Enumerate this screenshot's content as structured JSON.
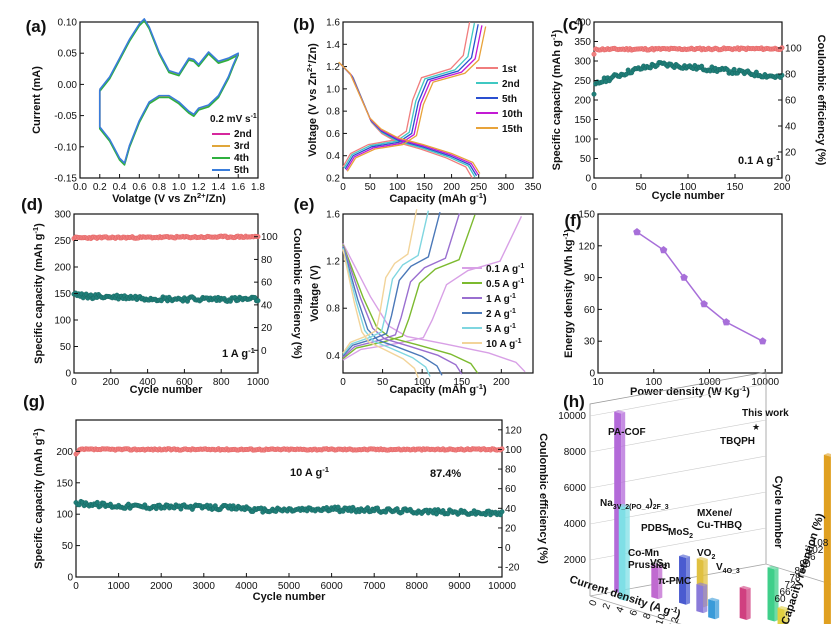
{
  "chart_data": [
    {
      "panel": "(a)",
      "type": "line",
      "xlabel": "Volatge (V vs Zn2+/Zn)",
      "ylabel": "Current (mA)",
      "xlim": [
        0.0,
        1.8
      ],
      "ylim": [
        -0.15,
        0.1
      ],
      "xticks": [
        0.0,
        0.2,
        0.4,
        0.6,
        0.8,
        1.0,
        1.2,
        1.4,
        1.6,
        1.8
      ],
      "yticks": [
        -0.15,
        -0.1,
        -0.05,
        0.0,
        0.05,
        0.1
      ],
      "legend_title": "0.2 mV s-1",
      "series": [
        {
          "name": "2nd",
          "color": "#d6279d",
          "offset": 0.0
        },
        {
          "name": "3rd",
          "color": "#e0a63a",
          "offset": 0.001
        },
        {
          "name": "4th",
          "color": "#2fb03f",
          "offset": -0.001
        },
        {
          "name": "5th",
          "color": "#3a7ddb",
          "offset": 0.002
        }
      ],
      "upper": [
        [
          0.2,
          -0.01
        ],
        [
          0.3,
          0.01
        ],
        [
          0.4,
          0.04
        ],
        [
          0.5,
          0.07
        ],
        [
          0.6,
          0.095
        ],
        [
          0.65,
          0.103
        ],
        [
          0.7,
          0.09
        ],
        [
          0.8,
          0.05
        ],
        [
          0.9,
          0.02
        ],
        [
          1.0,
          0.015
        ],
        [
          1.1,
          0.04
        ],
        [
          1.15,
          0.038
        ],
        [
          1.2,
          0.03
        ],
        [
          1.3,
          0.05
        ],
        [
          1.4,
          0.035
        ],
        [
          1.5,
          0.04
        ],
        [
          1.6,
          0.048
        ]
      ],
      "lower": [
        [
          1.6,
          0.048
        ],
        [
          1.55,
          0.03
        ],
        [
          1.5,
          0.01
        ],
        [
          1.4,
          -0.02
        ],
        [
          1.3,
          -0.035
        ],
        [
          1.2,
          -0.04
        ],
        [
          1.15,
          -0.05
        ],
        [
          1.1,
          -0.045
        ],
        [
          1.0,
          -0.03
        ],
        [
          0.9,
          -0.02
        ],
        [
          0.8,
          -0.02
        ],
        [
          0.7,
          -0.03
        ],
        [
          0.6,
          -0.06
        ],
        [
          0.5,
          -0.1
        ],
        [
          0.45,
          -0.128
        ],
        [
          0.4,
          -0.12
        ],
        [
          0.3,
          -0.09
        ],
        [
          0.2,
          -0.07
        ],
        [
          0.2,
          -0.01
        ]
      ]
    },
    {
      "panel": "(b)",
      "type": "line",
      "xlabel": "Capacity (mAh g-1)",
      "ylabel": "Voltage (V vs Zn2+/Zn)",
      "xlim": [
        0,
        350
      ],
      "ylim": [
        0.2,
        1.6
      ],
      "xticks": [
        0,
        50,
        100,
        150,
        200,
        250,
        300,
        350
      ],
      "yticks": [
        0.2,
        0.4,
        0.6,
        0.8,
        1.0,
        1.2,
        1.4,
        1.6
      ],
      "series": [
        {
          "name": "1st",
          "color": "#f07d7d",
          "cap": 238
        },
        {
          "name": "2nd",
          "color": "#3fc8c2",
          "cap": 245
        },
        {
          "name": "5th",
          "color": "#2a4fd0",
          "cap": 250
        },
        {
          "name": "10th",
          "color": "#c31ad4",
          "cap": 255
        },
        {
          "name": "15th",
          "color": "#e8a33a",
          "cap": 260
        }
      ]
    },
    {
      "panel": "(c)",
      "type": "scatter",
      "xlabel": "Cycle number",
      "ylabel": "Specific capacity (mAh g-1)",
      "y2label": "Coulombic efficiency (%)",
      "xlim": [
        0,
        200
      ],
      "ylim": [
        0,
        400
      ],
      "y2lim": [
        0,
        120
      ],
      "xticks": [
        0,
        50,
        100,
        150,
        200
      ],
      "yticks": [
        0,
        50,
        100,
        150,
        200,
        250,
        300,
        350,
        400
      ],
      "y2ticks": [
        0,
        20,
        40,
        60,
        80,
        100
      ],
      "annotation": "0.1 A g-1",
      "capacity": [
        [
          0,
          210
        ],
        [
          2,
          240
        ],
        [
          10,
          250
        ],
        [
          40,
          275
        ],
        [
          70,
          292
        ],
        [
          100,
          285
        ],
        [
          130,
          278
        ],
        [
          160,
          270
        ],
        [
          200,
          258
        ]
      ],
      "efficiency": [
        [
          0,
          95
        ],
        [
          2,
          99
        ],
        [
          200,
          99.5
        ]
      ]
    },
    {
      "panel": "(d)",
      "type": "scatter",
      "xlabel": "Cycle number",
      "ylabel": "Specific capacity (mAh g-1)",
      "y2label": "Coulombic efficiency (%)",
      "xlim": [
        0,
        1000
      ],
      "ylim": [
        0,
        300
      ],
      "y2lim": [
        -20,
        120
      ],
      "xticks": [
        0,
        200,
        400,
        600,
        800,
        1000
      ],
      "yticks": [
        0,
        50,
        100,
        150,
        200,
        250,
        300
      ],
      "y2ticks": [
        0,
        20,
        40,
        60,
        80,
        100
      ],
      "annotation": "1 A g-1",
      "capacity": [
        [
          0,
          150
        ],
        [
          50,
          145
        ],
        [
          300,
          143
        ],
        [
          500,
          140
        ],
        [
          1000,
          139
        ]
      ],
      "efficiency": [
        [
          0,
          99
        ],
        [
          1000,
          100
        ]
      ]
    },
    {
      "panel": "(e)",
      "type": "line",
      "xlabel": "Capacity (mAh g-1)",
      "ylabel": "Voltage (V)",
      "xlim": [
        0,
        240
      ],
      "ylim": [
        0.25,
        1.6
      ],
      "xticks": [
        0,
        50,
        100,
        150,
        200
      ],
      "yticks": [
        0.4,
        0.8,
        1.2,
        1.6
      ],
      "series": [
        {
          "name": "0.1 A g-1",
          "color": "#d8a0e6",
          "cap": 230
        },
        {
          "name": "0.5 A g-1",
          "color": "#7cba2f",
          "cap": 170
        },
        {
          "name": "1 A g-1",
          "color": "#9a6fd0",
          "cap": 150
        },
        {
          "name": "2 A g-1",
          "color": "#4a78b8",
          "cap": 125
        },
        {
          "name": "5 A g-1",
          "color": "#7fd6e0",
          "cap": 110
        },
        {
          "name": "10 A g-1",
          "color": "#f2d49a",
          "cap": 95
        }
      ]
    },
    {
      "panel": "(f)",
      "type": "line",
      "xscale": "log",
      "xlabel": "Power density (W Kg-1)",
      "ylabel": "Energy density (Wh kg-1)",
      "xlim": [
        10,
        20000
      ],
      "ylim": [
        0,
        150
      ],
      "xticks": [
        10,
        100,
        1000,
        10000
      ],
      "yticks": [
        0,
        30,
        60,
        90,
        120,
        150
      ],
      "color": "#a76fd9",
      "x": [
        50,
        150,
        350,
        800,
        2000,
        9000
      ],
      "y": [
        133,
        116,
        90,
        65,
        48,
        30
      ]
    },
    {
      "panel": "(g)",
      "type": "scatter",
      "xlabel": "Cycle number",
      "ylabel": "Specific capacity (mAh g-1)",
      "y2label": "Coulombic efficiency (%)",
      "xlim": [
        0,
        10000
      ],
      "ylim": [
        0,
        250
      ],
      "y2lim": [
        -30,
        130
      ],
      "xticks": [
        0,
        1000,
        2000,
        3000,
        4000,
        5000,
        6000,
        7000,
        8000,
        9000,
        10000
      ],
      "yticks": [
        0,
        50,
        100,
        150,
        200
      ],
      "y2ticks": [
        -20,
        0,
        20,
        40,
        60,
        80,
        100,
        120
      ],
      "annotation": "10 A g-1",
      "retention": "87.4%",
      "capacity": [
        [
          0,
          118
        ],
        [
          1000,
          113
        ],
        [
          3000,
          111
        ],
        [
          4000,
          110
        ],
        [
          4200,
          106
        ],
        [
          6000,
          108
        ],
        [
          8000,
          105
        ],
        [
          10000,
          101
        ]
      ],
      "efficiency": [
        [
          0,
          95
        ],
        [
          100,
          100
        ],
        [
          10000,
          100
        ]
      ]
    },
    {
      "panel": "(h)",
      "type": "bar",
      "subtype": "3d",
      "xlabel": "Current density (A g-1)",
      "ylabel": "Cycle number",
      "zlabel": "Capacity retention (%)",
      "yticks": [
        2000,
        4000,
        6000,
        8000,
        10000
      ],
      "bars": [
        {
          "label": "PA-COF",
          "value": 10000,
          "color": "#b36ad9"
        },
        {
          "label": "Na3V2(PO4)2F3",
          "value": 5200,
          "color": "#7fdfe6"
        },
        {
          "label": "Co-Mn Prussian",
          "value": 1800,
          "color": "#c06ad0"
        },
        {
          "label": "PDBS",
          "value": 2600,
          "color": "#4a5bd0"
        },
        {
          "label": "MoS2",
          "value": 2600,
          "color": "#e0c040"
        },
        {
          "label": "VS2",
          "value": 1500,
          "color": "#8a7bd9"
        },
        {
          "label": "π-PMC",
          "value": 1000,
          "color": "#3a9bd9"
        },
        {
          "label": "VO2",
          "value": 1700,
          "color": "#d04080"
        },
        {
          "label": "MXene/ Cu-THBQ",
          "value": 2900,
          "color": "#3fcf8a"
        },
        {
          "label": "V4O3",
          "value": 1200,
          "color": "#e0d040"
        },
        {
          "label": "TBQPH",
          "value": 9500,
          "color": "#e0a020"
        },
        {
          "label": "This work",
          "value": 10000,
          "color": "#e02020"
        }
      ],
      "zticks": [
        60,
        66,
        72,
        78,
        84,
        90,
        96,
        102,
        108
      ],
      "xticks": [
        0,
        2,
        4,
        6,
        8,
        10,
        12
      ]
    }
  ]
}
